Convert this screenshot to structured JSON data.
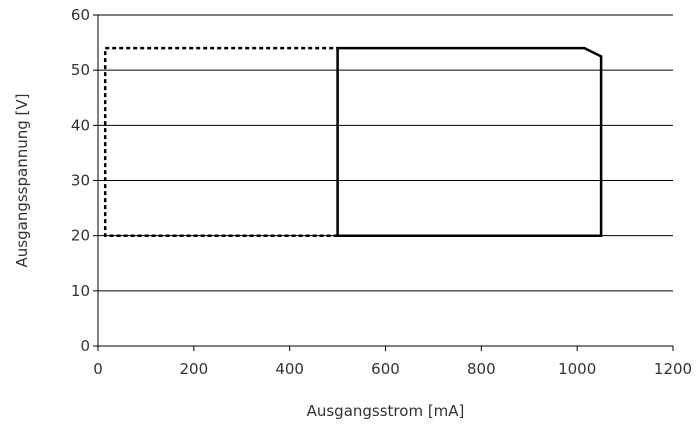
{
  "chart_data": {
    "type": "line",
    "title": "",
    "xlabel": "Ausgangsstrom [mA]",
    "ylabel": "Ausgangsspannung [V]",
    "xlim": [
      0,
      1200
    ],
    "ylim": [
      0,
      60
    ],
    "xticks": [
      0,
      200,
      400,
      600,
      800,
      1000,
      1200
    ],
    "yticks": [
      0,
      10,
      20,
      30,
      40,
      50,
      60
    ],
    "grid": "horizontal",
    "legend": "none",
    "series": [
      {
        "style": "dotted",
        "color": "#000000",
        "points": [
          [
            500,
            20
          ],
          [
            15,
            20
          ],
          [
            15,
            54
          ],
          [
            500,
            54
          ]
        ]
      },
      {
        "style": "solid",
        "color": "#000000",
        "points": [
          [
            500,
            20
          ],
          [
            500,
            54
          ],
          [
            1015,
            54
          ],
          [
            1050,
            52.5
          ],
          [
            1050,
            20
          ],
          [
            500,
            20
          ]
        ]
      }
    ]
  }
}
